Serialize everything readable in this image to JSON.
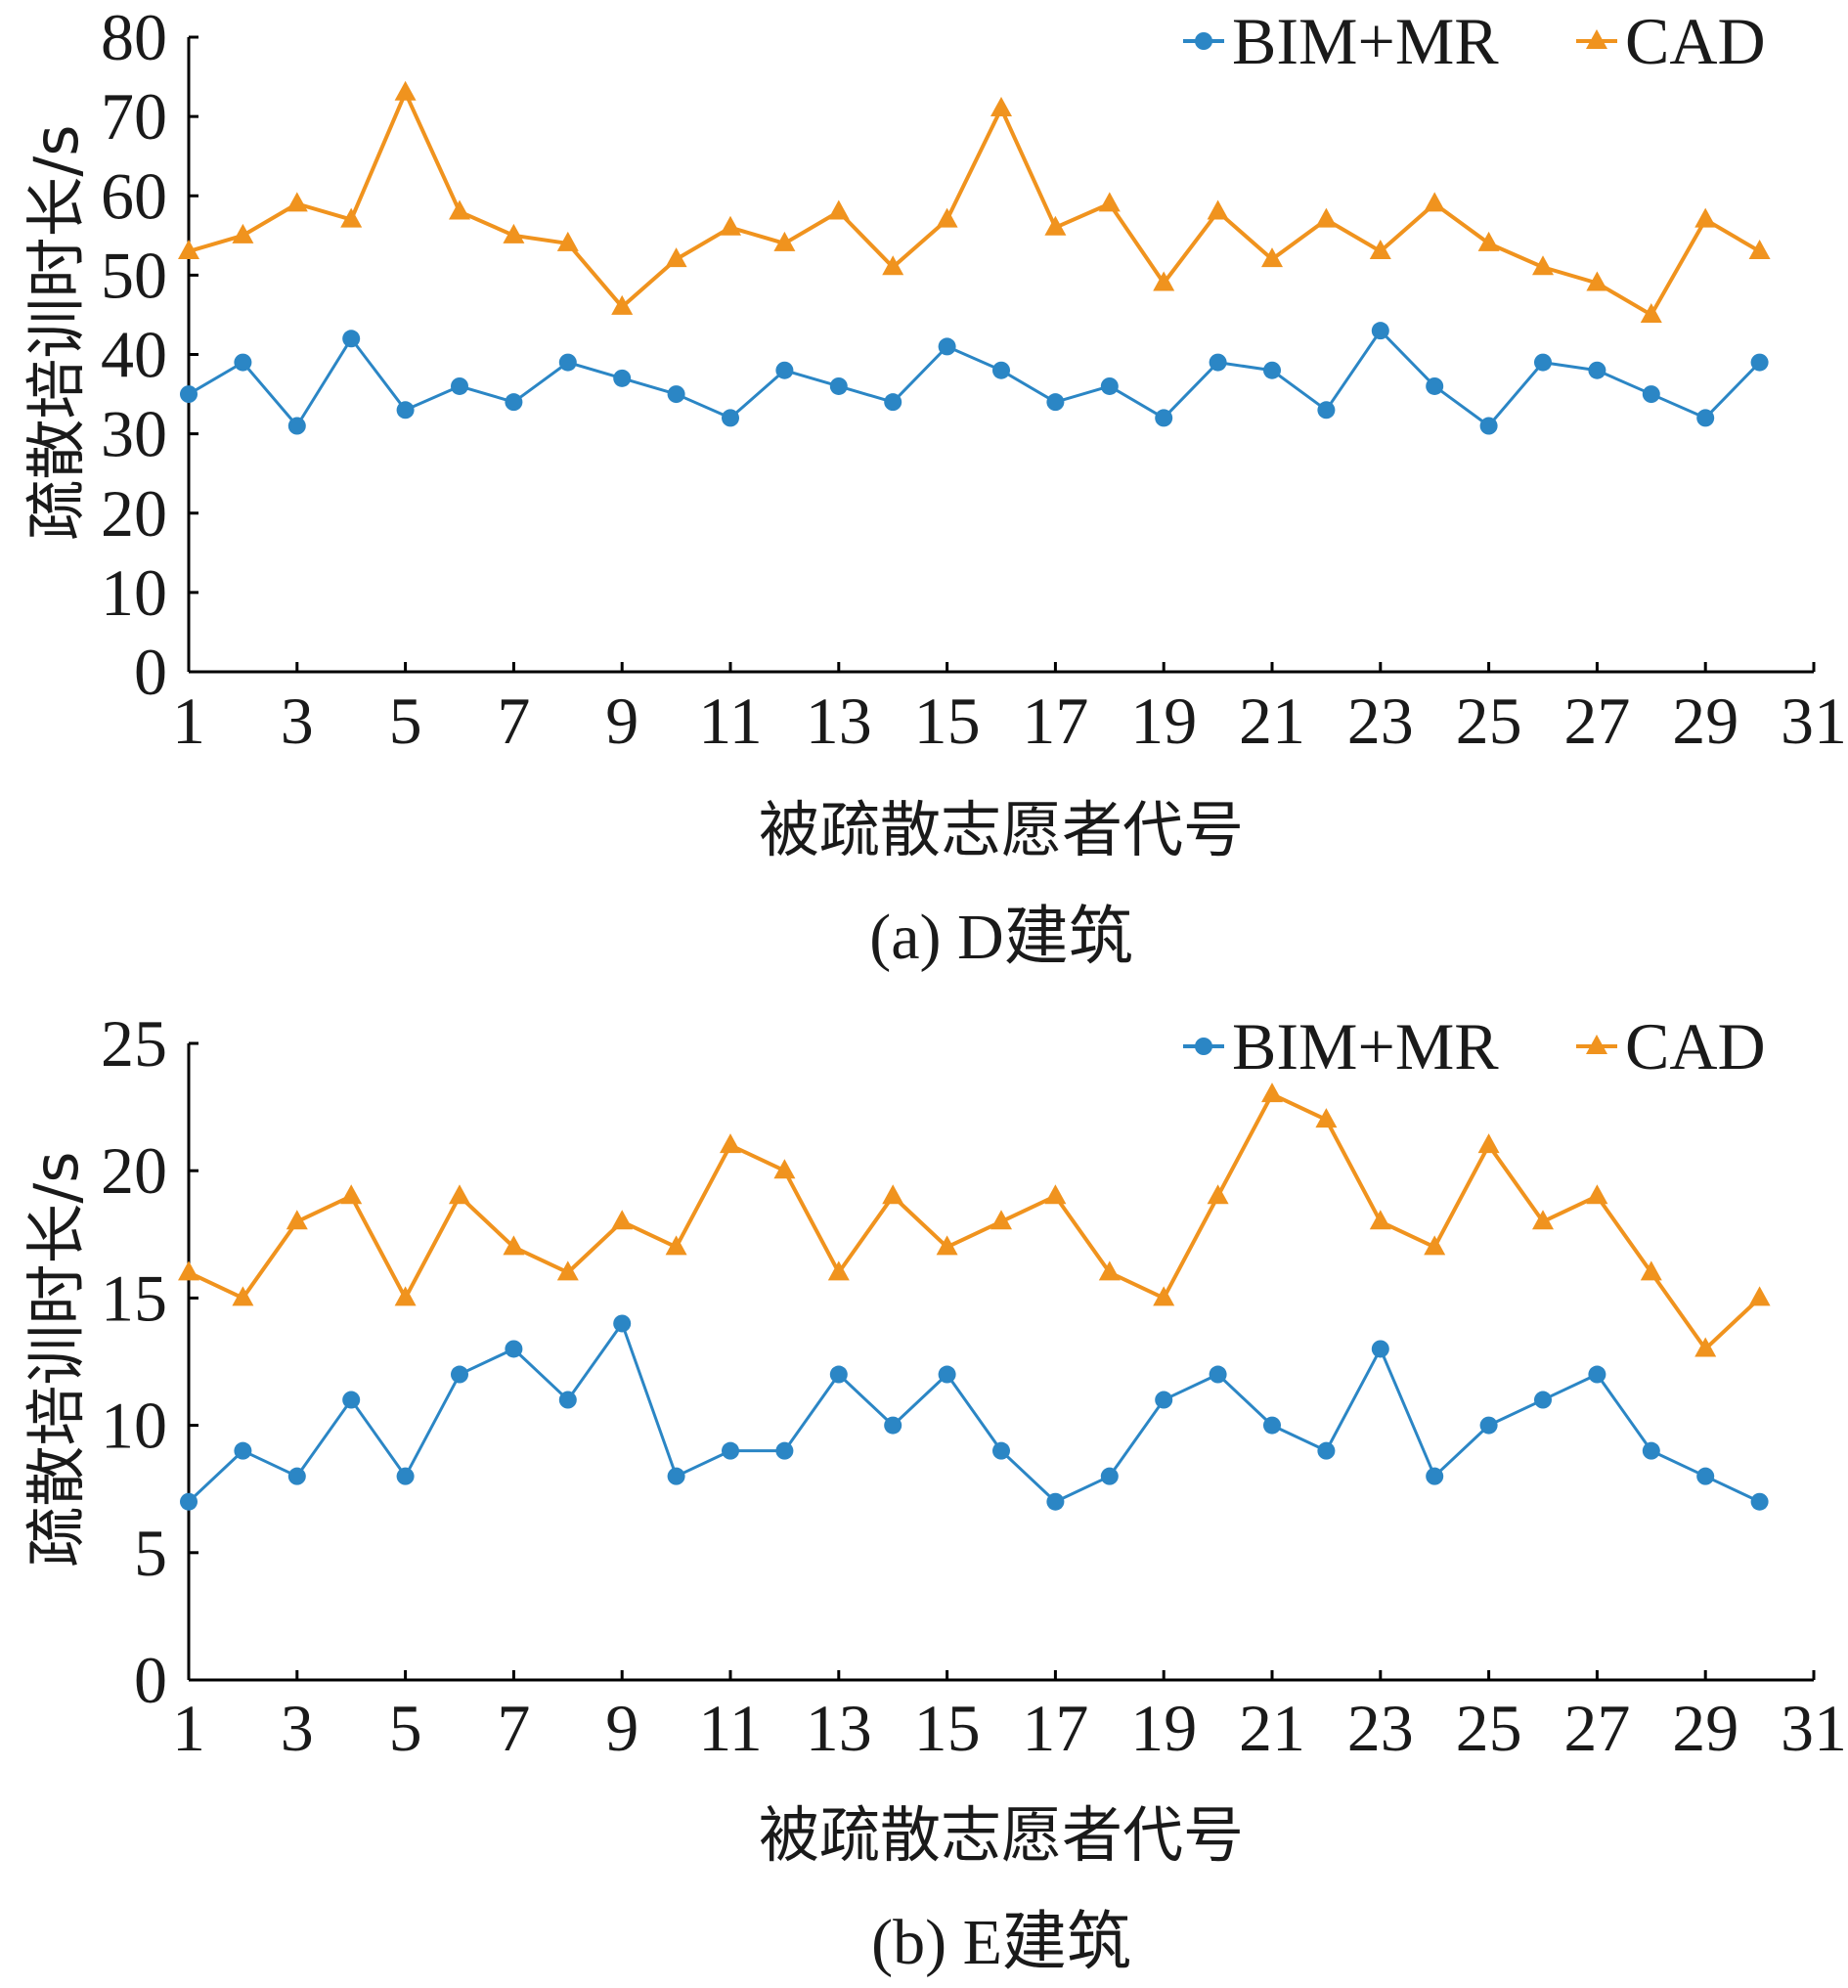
{
  "chart_data": [
    {
      "type": "line",
      "caption": "(a) D建筑",
      "xlabel": "被疏散志愿者代号",
      "ylabel": "疏散培训时长/s",
      "xlim": [
        1,
        31
      ],
      "ylim": [
        0,
        80
      ],
      "xticks": [
        1,
        3,
        5,
        7,
        9,
        11,
        13,
        15,
        17,
        19,
        21,
        23,
        25,
        27,
        29,
        31
      ],
      "yticks": [
        0,
        10,
        20,
        30,
        40,
        50,
        60,
        70,
        80
      ],
      "legend_position": "top-right",
      "grid": false,
      "x": [
        1,
        2,
        3,
        4,
        5,
        6,
        7,
        8,
        9,
        10,
        11,
        12,
        13,
        14,
        15,
        16,
        17,
        18,
        19,
        20,
        21,
        22,
        23,
        24,
        25,
        26,
        27,
        28,
        29,
        30
      ],
      "series": [
        {
          "name": "BIM+MR",
          "color": "#2b86c5",
          "marker": "circle",
          "values": [
            35,
            39,
            31,
            42,
            33,
            36,
            34,
            39,
            37,
            35,
            32,
            38,
            36,
            34,
            41,
            38,
            34,
            36,
            32,
            39,
            38,
            33,
            43,
            36,
            31,
            39,
            38,
            35,
            32,
            39
          ]
        },
        {
          "name": "CAD",
          "color": "#f0931e",
          "marker": "triangle",
          "values": [
            53,
            55,
            59,
            57,
            73,
            58,
            55,
            54,
            46,
            52,
            56,
            54,
            58,
            51,
            57,
            71,
            56,
            59,
            49,
            58,
            52,
            57,
            53,
            59,
            54,
            51,
            49,
            45,
            57,
            53
          ]
        }
      ]
    },
    {
      "type": "line",
      "caption": "(b) E建筑",
      "xlabel": "被疏散志愿者代号",
      "ylabel": "疏散培训时长/s",
      "xlim": [
        1,
        31
      ],
      "ylim": [
        0,
        25
      ],
      "xticks": [
        1,
        3,
        5,
        7,
        9,
        11,
        13,
        15,
        17,
        19,
        21,
        23,
        25,
        27,
        29,
        31
      ],
      "yticks": [
        0,
        5,
        10,
        15,
        20,
        25
      ],
      "legend_position": "top-right",
      "grid": false,
      "x": [
        1,
        2,
        3,
        4,
        5,
        6,
        7,
        8,
        9,
        10,
        11,
        12,
        13,
        14,
        15,
        16,
        17,
        18,
        19,
        20,
        21,
        22,
        23,
        24,
        25,
        26,
        27,
        28,
        29,
        30
      ],
      "series": [
        {
          "name": "BIM+MR",
          "color": "#2b86c5",
          "marker": "circle",
          "values": [
            7,
            9,
            8,
            11,
            8,
            12,
            13,
            11,
            14,
            8,
            9,
            9,
            12,
            10,
            12,
            9,
            7,
            8,
            11,
            12,
            10,
            9,
            13,
            8,
            10,
            11,
            12,
            9,
            8,
            7
          ]
        },
        {
          "name": "CAD",
          "color": "#f0931e",
          "marker": "triangle",
          "values": [
            16,
            15,
            18,
            19,
            15,
            19,
            17,
            16,
            18,
            17,
            21,
            20,
            16,
            19,
            17,
            18,
            19,
            16,
            15,
            19,
            23,
            22,
            18,
            17,
            21,
            18,
            19,
            16,
            13,
            15
          ]
        }
      ]
    }
  ]
}
